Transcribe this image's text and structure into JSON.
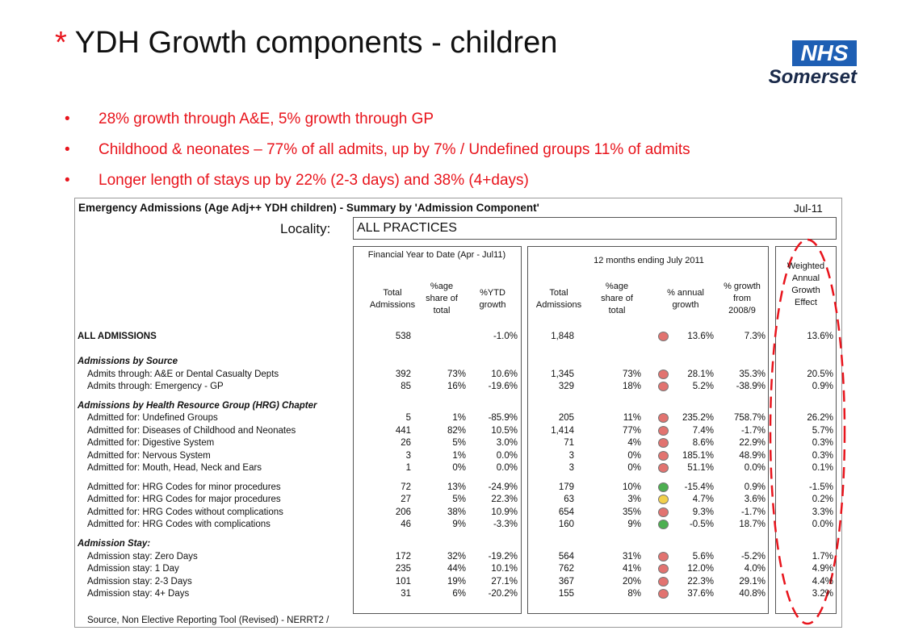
{
  "title": {
    "marker": "*",
    "text": "YDH Growth components - children"
  },
  "logo": {
    "badge": "NHS",
    "name": "Somerset"
  },
  "bullets": [
    "28% growth through A&E, 5% growth through GP",
    "Childhood & neonates – 77% of all admits, up by 7% / Undefined groups 11% of admits",
    "Longer length of stays up by 22% (2-3 days) and 38% (4+days)"
  ],
  "table": {
    "title": "Emergency Admissions (Age Adj++ YDH children) - Summary by 'Admission Component'",
    "date": "Jul-11",
    "locality_label": "Locality:",
    "locality": "ALL PRACTICES",
    "groups": [
      "Financial Year to Date (Apr - Jul11)",
      "12 months ending July 2011"
    ],
    "columns": [
      "Total Admissions",
      "%age share of total",
      "%YTD growth",
      "Total Admissions",
      "%age share of total",
      "% annual growth",
      "% growth from 2008/9",
      "Weighted Annual Growth Effect"
    ],
    "total": {
      "label": "ALL ADMISSIONS",
      "cells": [
        "538",
        null,
        "-1.0%",
        "1,848",
        null,
        "13.6%",
        "7.3%",
        "13.6%"
      ],
      "dot": "#e27370"
    },
    "sections": [
      {
        "heading": "Admissions by Source",
        "rows": [
          {
            "label": "Admits through: A&E or Dental Casualty Depts",
            "cells": [
              "392",
              "73%",
              "10.6%",
              "1,345",
              "73%",
              "28.1%",
              "35.3%",
              "20.5%"
            ],
            "dot": "#e27370"
          },
          {
            "label": "Admits through: Emergency - GP",
            "cells": [
              "85",
              "16%",
              "-19.6%",
              "329",
              "18%",
              "5.2%",
              "-38.9%",
              "0.9%"
            ],
            "dot": "#e27370"
          }
        ]
      },
      {
        "heading": "Admissions by Health Resource Group (HRG) Chapter",
        "rows": [
          {
            "label": "Admitted for: Undefined Groups",
            "cells": [
              "5",
              "1%",
              "-85.9%",
              "205",
              "11%",
              "235.2%",
              "758.7%",
              "26.2%"
            ],
            "dot": "#e27370"
          },
          {
            "label": "Admitted for: Diseases of Childhood and Neonates",
            "cells": [
              "441",
              "82%",
              "10.5%",
              "1,414",
              "77%",
              "7.4%",
              "-1.7%",
              "5.7%"
            ],
            "dot": "#e27370"
          },
          {
            "label": "Admitted for: Digestive System",
            "cells": [
              "26",
              "5%",
              "3.0%",
              "71",
              "4%",
              "8.6%",
              "22.9%",
              "0.3%"
            ],
            "dot": "#e27370"
          },
          {
            "label": "Admitted for: Nervous System",
            "cells": [
              "3",
              "1%",
              "0.0%",
              "3",
              "0%",
              "185.1%",
              "48.9%",
              "0.3%"
            ],
            "dot": "#e27370"
          },
          {
            "label": "Admitted for: Mouth, Head, Neck and Ears",
            "cells": [
              "1",
              "0%",
              "0.0%",
              "3",
              "0%",
              "51.1%",
              "0.0%",
              "0.1%"
            ],
            "dot": "#e27370"
          }
        ]
      },
      {
        "rows": [
          {
            "label": "Admitted for: HRG Codes for minor procedures",
            "cells": [
              "72",
              "13%",
              "-24.9%",
              "179",
              "10%",
              "-15.4%",
              "0.9%",
              "-1.5%"
            ],
            "dot": "#4caf50"
          },
          {
            "label": "Admitted for: HRG Codes for major procedures",
            "cells": [
              "27",
              "5%",
              "22.3%",
              "63",
              "3%",
              "4.7%",
              "3.6%",
              "0.2%"
            ],
            "dot": "#f2d04b"
          },
          {
            "label": "Admitted for: HRG Codes without complications",
            "cells": [
              "206",
              "38%",
              "10.9%",
              "654",
              "35%",
              "9.3%",
              "-1.7%",
              "3.3%"
            ],
            "dot": "#e27370"
          },
          {
            "label": "Admitted for: HRG Codes with complications",
            "cells": [
              "46",
              "9%",
              "-3.3%",
              "160",
              "9%",
              "-0.5%",
              "18.7%",
              "0.0%"
            ],
            "dot": "#4caf50"
          }
        ]
      },
      {
        "heading": "Admission Stay:",
        "rows": [
          {
            "label": "Admission stay: Zero Days",
            "cells": [
              "172",
              "32%",
              "-19.2%",
              "564",
              "31%",
              "5.6%",
              "-5.2%",
              "1.7%"
            ],
            "dot": "#e27370"
          },
          {
            "label": "Admission stay: 1 Day",
            "cells": [
              "235",
              "44%",
              "10.1%",
              "762",
              "41%",
              "12.0%",
              "4.0%",
              "4.9%"
            ],
            "dot": "#e27370"
          },
          {
            "label": "Admission stay: 2-3 Days",
            "cells": [
              "101",
              "19%",
              "27.1%",
              "367",
              "20%",
              "22.3%",
              "29.1%",
              "4.4%"
            ],
            "dot": "#e27370"
          },
          {
            "label": "Admission stay: 4+ Days",
            "cells": [
              "31",
              "6%",
              "-20.2%",
              "155",
              "8%",
              "37.6%",
              "40.8%",
              "3.2%"
            ],
            "dot": "#e27370"
          }
        ]
      }
    ],
    "source": "Source, Non Elective Reporting Tool (Revised) - NERRT2 /"
  }
}
